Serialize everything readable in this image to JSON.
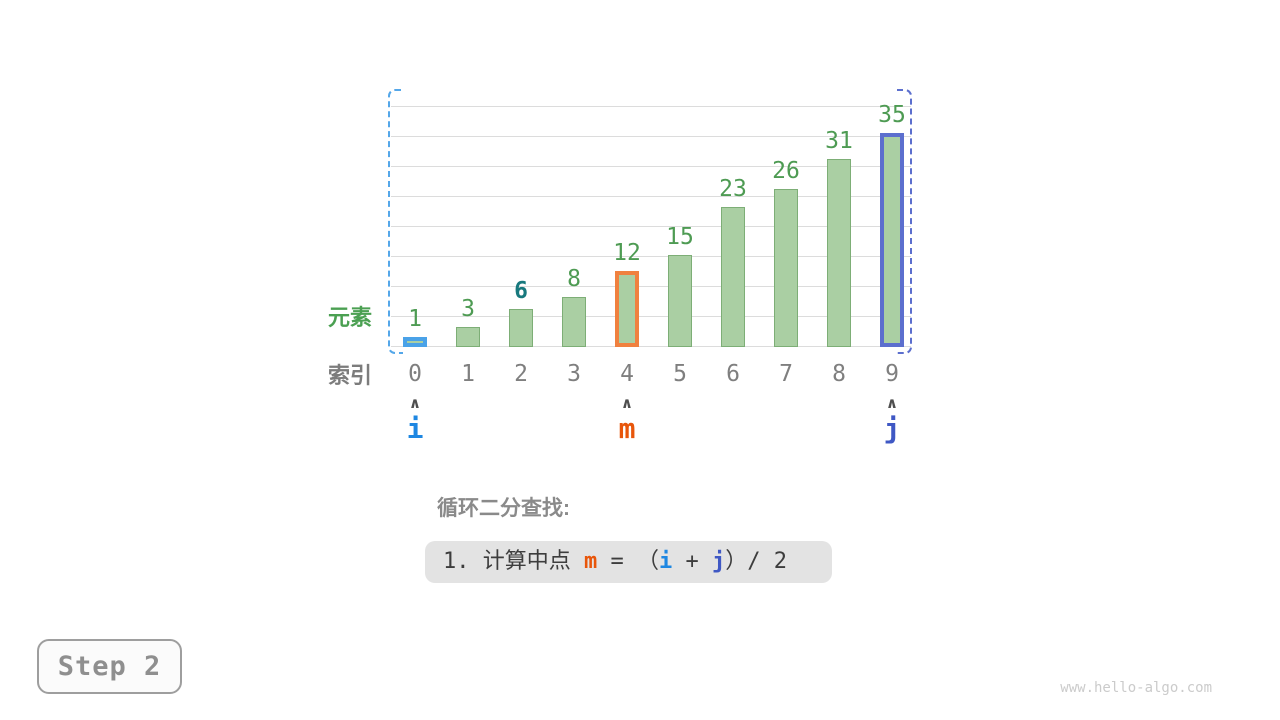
{
  "chart_data": {
    "type": "bar",
    "title": "",
    "categories": [
      "0",
      "1",
      "2",
      "3",
      "4",
      "5",
      "6",
      "7",
      "8",
      "9"
    ],
    "values": [
      1,
      3,
      6,
      8,
      12,
      15,
      23,
      26,
      31,
      35
    ],
    "ylim": [
      0,
      40
    ],
    "gridline_step": 5,
    "grid": true,
    "value_labels_shown": true,
    "highlighted_bars": [
      {
        "index": 0,
        "color": "#4aa2e8",
        "meaning": "pointer i"
      },
      {
        "index": 4,
        "color": "#f0813f",
        "meaning": "pointer m"
      },
      {
        "index": 9,
        "color": "#5c6fce",
        "meaning": "pointer j"
      }
    ],
    "target_value_index": 2
  },
  "axis_labels": {
    "element": "元素",
    "index": "索引"
  },
  "pointers": [
    {
      "label": "i",
      "index": 0,
      "color": "#1e87e2"
    },
    {
      "label": "m",
      "index": 4,
      "color": "#e8560b"
    },
    {
      "label": "j",
      "index": 9,
      "color": "#3f58c4"
    }
  ],
  "interval_brackets": {
    "left_color": "#54a7e9",
    "right_color": "#5c6fce"
  },
  "caption_title": "循环二分查找:",
  "step_box": {
    "part1": "1. 计算中点 ",
    "m": "m",
    "part2": " = （",
    "i": "i",
    "part3": " + ",
    "j": "j",
    "part4": "）/ 2"
  },
  "step_button_label": "Step 2",
  "watermark": "www.hello-algo.com",
  "colors": {
    "bar_fill": "#aacfa3",
    "bar_border": "#7dae76",
    "value_label": "#4e9b53",
    "target_value_label": "#18797e",
    "grid_line": "#dcdcdc",
    "index_text": "#7f7f7f",
    "caret": "#4f4f4f",
    "element_label": "#4ba052",
    "index_label": "#7c7c7c"
  }
}
